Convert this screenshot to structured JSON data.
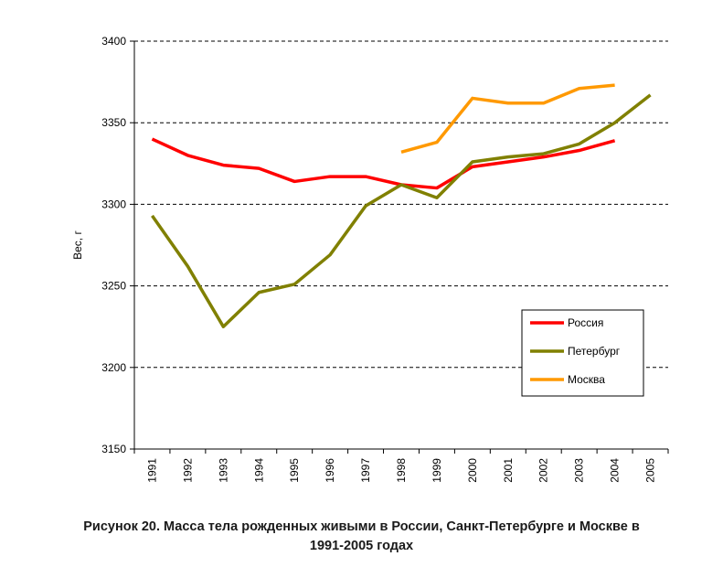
{
  "caption": {
    "line1": "Рисунок 20. Масса тела рожденных живыми в России, Санкт-Петербурге и Москве в",
    "line2": "1991-2005 годах"
  },
  "chart_data": {
    "type": "line",
    "title": "",
    "xlabel": "",
    "ylabel": "Вес, г",
    "ylim": [
      3150,
      3400
    ],
    "yticks": [
      3150,
      3200,
      3250,
      3300,
      3350,
      3400
    ],
    "grid": "horizontal-dashed",
    "legend_position": "bottom-right",
    "x": [
      "1991",
      "1992",
      "1993",
      "1994",
      "1995",
      "1996",
      "1997",
      "1998",
      "1999",
      "2000",
      "2001",
      "2002",
      "2003",
      "2004",
      "2005"
    ],
    "series": [
      {
        "name": "Россия",
        "color": "#ff0000",
        "values": [
          3340,
          3330,
          3324,
          3322,
          3314,
          3317,
          3317,
          3312,
          3310,
          3323,
          3326,
          3329,
          3333,
          3339,
          null
        ]
      },
      {
        "name": "Петербург",
        "color": "#808000",
        "values": [
          3293,
          3262,
          3225,
          3246,
          3251,
          3269,
          3299,
          3312,
          3304,
          3326,
          3329,
          3331,
          3337,
          3350,
          3367
        ]
      },
      {
        "name": "Москва",
        "color": "#ff9900",
        "values": [
          null,
          null,
          null,
          null,
          null,
          null,
          null,
          3332,
          3338,
          3365,
          3362,
          3362,
          3371,
          3373,
          null
        ]
      }
    ]
  }
}
